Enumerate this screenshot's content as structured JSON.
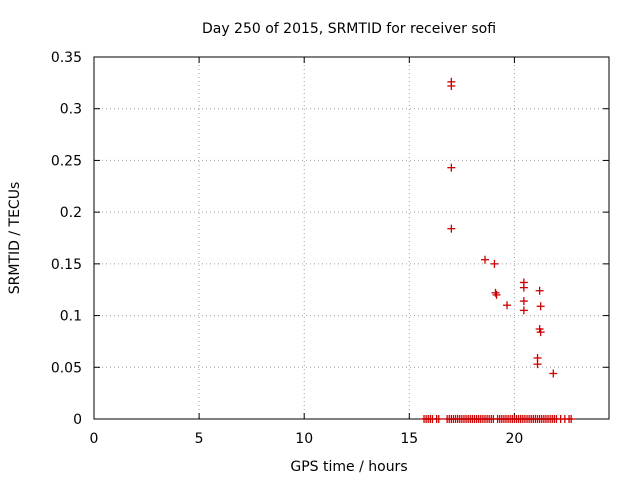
{
  "chart_data": {
    "type": "scatter",
    "title": "Day 250 of 2015, SRMTID for receiver sofi",
    "xlabel": "GPS time / hours",
    "ylabel": "SRMTID / TECUs",
    "xlim": [
      0,
      24.5
    ],
    "ylim": [
      0,
      0.35
    ],
    "grid": true,
    "marker": "+",
    "color": "#cc0000",
    "x_ticks": [
      0,
      5,
      10,
      15,
      20
    ],
    "x_tick_labels": [
      "0",
      "5",
      "10",
      "15",
      "20"
    ],
    "y_ticks": [
      0,
      0.05,
      0.1,
      0.15,
      0.2,
      0.25,
      0.3,
      0.35
    ],
    "y_tick_labels": [
      "0",
      "0.05",
      "0.1",
      "0.15",
      "0.2",
      "0.25",
      "0.3",
      "0.35"
    ],
    "points": [
      {
        "x": 17.0,
        "y": 0.326
      },
      {
        "x": 17.0,
        "y": 0.322
      },
      {
        "x": 17.0,
        "y": 0.243
      },
      {
        "x": 17.0,
        "y": 0.184
      },
      {
        "x": 18.6,
        "y": 0.154
      },
      {
        "x": 19.05,
        "y": 0.15
      },
      {
        "x": 19.1,
        "y": 0.122
      },
      {
        "x": 19.15,
        "y": 0.12
      },
      {
        "x": 19.65,
        "y": 0.11
      },
      {
        "x": 20.45,
        "y": 0.132
      },
      {
        "x": 20.45,
        "y": 0.127
      },
      {
        "x": 20.45,
        "y": 0.114
      },
      {
        "x": 20.45,
        "y": 0.105
      },
      {
        "x": 21.2,
        "y": 0.124
      },
      {
        "x": 21.25,
        "y": 0.109
      },
      {
        "x": 21.2,
        "y": 0.087
      },
      {
        "x": 21.25,
        "y": 0.084
      },
      {
        "x": 21.1,
        "y": 0.059
      },
      {
        "x": 21.1,
        "y": 0.053
      },
      {
        "x": 21.85,
        "y": 0.044
      }
    ],
    "zero_points_x": [
      15.7,
      15.8,
      15.9,
      16.0,
      16.1,
      16.3,
      16.4,
      16.8,
      16.9,
      17.0,
      17.1,
      17.2,
      17.3,
      17.4,
      17.5,
      17.6,
      17.7,
      17.8,
      17.9,
      18.0,
      18.1,
      18.2,
      18.3,
      18.4,
      18.5,
      18.6,
      18.7,
      18.8,
      18.9,
      19.0,
      19.2,
      19.3,
      19.4,
      19.5,
      19.6,
      19.7,
      19.8,
      19.9,
      20.0,
      20.1,
      20.2,
      20.3,
      20.4,
      20.5,
      20.6,
      20.7,
      20.8,
      20.9,
      21.0,
      21.1,
      21.2,
      21.3,
      21.4,
      21.5,
      21.6,
      21.7,
      21.8,
      21.9,
      22.0,
      22.2,
      22.4,
      22.6,
      22.7
    ]
  }
}
